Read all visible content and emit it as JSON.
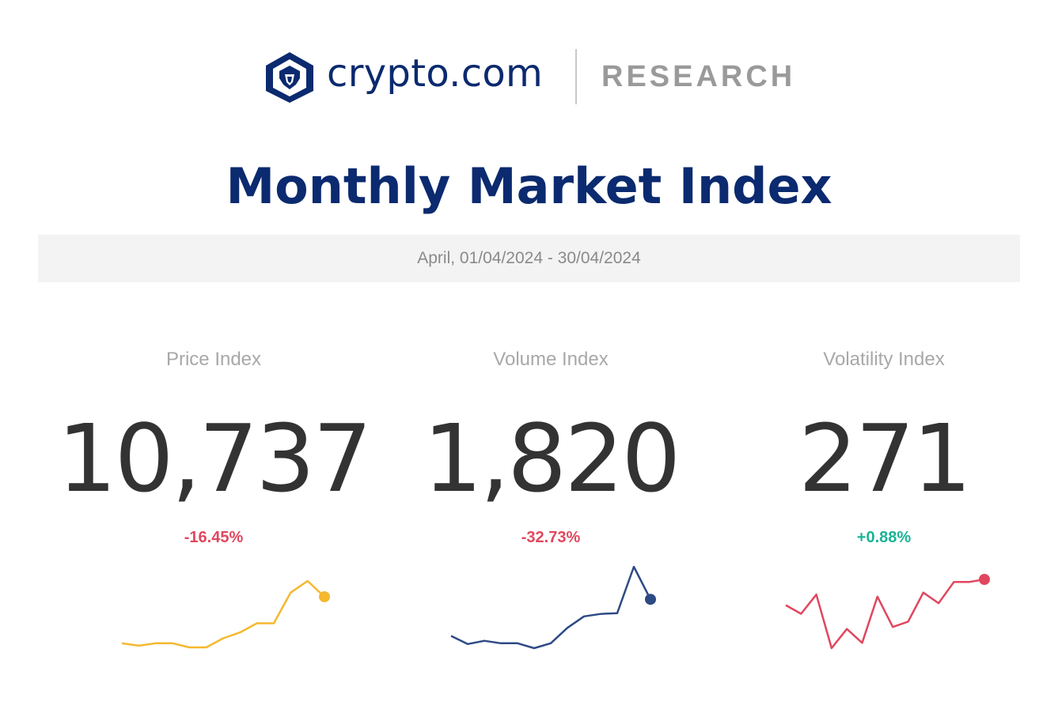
{
  "brand": {
    "name": "crypto.com",
    "section": "RESEARCH",
    "logo_icon": "crypto-lion-shield-icon",
    "colors": {
      "primary": "#0b2a6f",
      "muted": "#9a9a9a"
    }
  },
  "report": {
    "title": "Monthly Market Index",
    "period": "April, 01/04/2024 - 30/04/2024"
  },
  "indices": [
    {
      "label": "Price Index",
      "value": "10,737",
      "change": "-16.45%",
      "trend": "negative",
      "line_color": "#f5b82e",
      "sparkline": [
        18,
        15,
        18,
        18,
        13,
        13,
        24,
        31,
        42,
        42,
        79,
        93,
        74
      ]
    },
    {
      "label": "Volume Index",
      "value": "1,820",
      "change": "-32.73%",
      "trend": "negative",
      "line_color": "#2e4a85",
      "sparkline": [
        15,
        5,
        9,
        6,
        6,
        0,
        6,
        25,
        39,
        42,
        43,
        100,
        60
      ]
    },
    {
      "label": "Volatility Index",
      "value": "271",
      "change": "+0.88%",
      "trend": "positive",
      "line_color": "#e0475e",
      "sparkline": [
        65,
        52,
        81,
        0,
        29,
        8,
        78,
        32,
        40,
        84,
        68,
        100,
        100,
        104
      ]
    }
  ]
}
